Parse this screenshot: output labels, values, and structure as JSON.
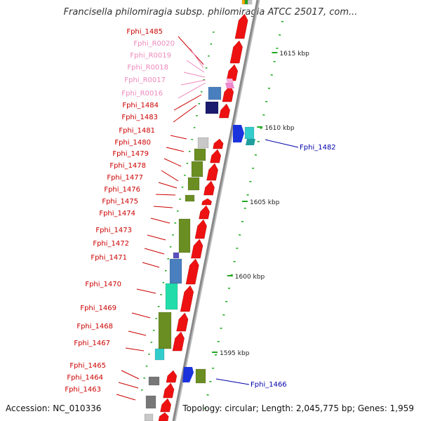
{
  "title": "Francisella philomiragia subsp. philomiragia ATCC 25017, com...",
  "footer": {
    "accession": "Accession: NC_010336",
    "summary": "Topology: circular; Length: 2,045,775 bp; Genes: 1,959"
  },
  "colors": {
    "gene": "#ee1111",
    "olive": "#6b8e23",
    "steelblue": "#4a7fbf",
    "navy": "#1a1a6e",
    "blue": "#1a33dd",
    "cyan": "#33cccc",
    "gray": "#777777",
    "lightgray": "#c8c8c8",
    "green": "#22aa22",
    "pink": "#ee88cc",
    "backbone": "#888888",
    "label_dark": "#cc0000",
    "label_pink": "#ee88bb",
    "label_blue": "#0000aa"
  },
  "scale_labels": [
    "1615 kbp",
    "1610 kbp",
    "1605 kbp",
    "1600 kbp",
    "1595 kbp"
  ],
  "left_labels": [
    {
      "text": "Fphi_1485",
      "tone": "dark"
    },
    {
      "text": "Fphi_R0020",
      "tone": "pink"
    },
    {
      "text": "Fphi_R0019",
      "tone": "pink"
    },
    {
      "text": "Fphi_R0018",
      "tone": "pink"
    },
    {
      "text": "Fphi_R0017",
      "tone": "pink"
    },
    {
      "text": "Fphi_R0016",
      "tone": "pink"
    },
    {
      "text": "Fphi_1484",
      "tone": "dark"
    },
    {
      "text": "Fphi_1483",
      "tone": "dark"
    },
    {
      "text": "Fphi_1481",
      "tone": "dark"
    },
    {
      "text": "Fphi_1480",
      "tone": "dark"
    },
    {
      "text": "Fphi_1479",
      "tone": "dark"
    },
    {
      "text": "Fphi_1478",
      "tone": "dark"
    },
    {
      "text": "Fphi_1477",
      "tone": "dark"
    },
    {
      "text": "Fphi_1476",
      "tone": "dark"
    },
    {
      "text": "Fphi_1475",
      "tone": "dark"
    },
    {
      "text": "Fphi_1474",
      "tone": "dark"
    },
    {
      "text": "Fphi_1473",
      "tone": "dark"
    },
    {
      "text": "Fphi_1472",
      "tone": "dark"
    },
    {
      "text": "Fphi_1471",
      "tone": "dark"
    },
    {
      "text": "Fphi_1470",
      "tone": "dark"
    },
    {
      "text": "Fphi_1469",
      "tone": "dark"
    },
    {
      "text": "Fphi_1468",
      "tone": "dark"
    },
    {
      "text": "Fphi_1467",
      "tone": "dark"
    },
    {
      "text": "Fphi_1465",
      "tone": "dark"
    },
    {
      "text": "Fphi_1464",
      "tone": "dark"
    },
    {
      "text": "Fphi_1463",
      "tone": "dark"
    }
  ],
  "right_labels": [
    {
      "text": "Fphi_1482",
      "tone": "blue"
    },
    {
      "text": "Fphi_1466",
      "tone": "blue"
    }
  ]
}
